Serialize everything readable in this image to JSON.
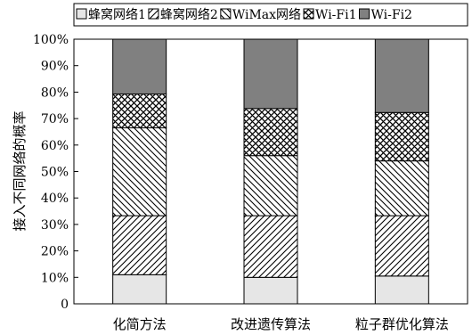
{
  "chart_data": {
    "type": "bar",
    "stacked": true,
    "title": "",
    "xlabel": "",
    "ylabel": "接入不同网络的概率",
    "ylim": [
      0,
      100
    ],
    "ytick_labels": [
      "0",
      "10%",
      "20%",
      "30%",
      "40%",
      "50%",
      "60%",
      "70%",
      "80%",
      "90%",
      "100%"
    ],
    "categories": [
      "化简方法",
      "改进遗传算法",
      "粒子群优化算法"
    ],
    "legend_position": "top",
    "grid": false,
    "series": [
      {
        "name": "蜂窝网络1",
        "values": [
          11,
          10,
          10.5
        ],
        "fill": "#e6e6e6",
        "pattern": "solid"
      },
      {
        "name": "蜂窝网络2",
        "values": [
          22.3,
          23.3,
          22.8
        ],
        "fill": "#ffffff",
        "pattern": "forward-hatch"
      },
      {
        "name": "WiMax网络",
        "values": [
          33.2,
          22.7,
          20.7
        ],
        "fill": "#ffffff",
        "pattern": "back-hatch"
      },
      {
        "name": "Wi-Fi1",
        "values": [
          12.8,
          17.8,
          18.3
        ],
        "fill": "#ffffff",
        "pattern": "crosshatch"
      },
      {
        "name": "Wi-Fi2",
        "values": [
          20.7,
          26.2,
          27.7
        ],
        "fill": "#808080",
        "pattern": "solid"
      }
    ]
  }
}
